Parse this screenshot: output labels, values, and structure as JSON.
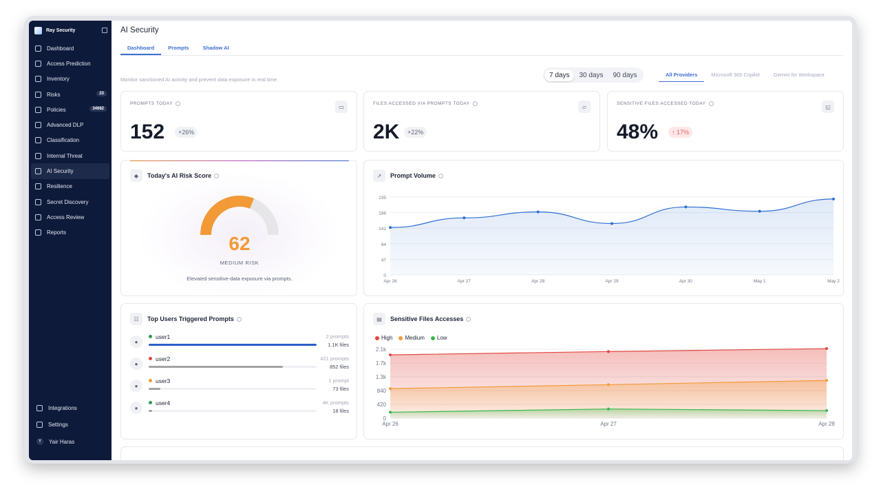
{
  "sidebar": {
    "brand": "Ray Security",
    "items": [
      {
        "label": "Dashboard",
        "icon": "grid-icon"
      },
      {
        "label": "Access Prediction",
        "icon": "prediction-icon"
      },
      {
        "label": "Inventory",
        "icon": "inventory-icon"
      },
      {
        "label": "Risks",
        "icon": "diamond-icon",
        "badge": "23"
      },
      {
        "label": "Policies",
        "icon": "policy-icon",
        "badge": "34682"
      },
      {
        "label": "Advanced DLP",
        "icon": "search-icon"
      },
      {
        "label": "Classification",
        "icon": "classification-icon"
      },
      {
        "label": "Internal Threat",
        "icon": "user-alert-icon"
      },
      {
        "label": "AI Security",
        "icon": "ai-security-icon",
        "active": true
      },
      {
        "label": "Resilience",
        "icon": "resilience-icon"
      },
      {
        "label": "Secret Discovery",
        "icon": "shield-icon"
      },
      {
        "label": "Access Review",
        "icon": "lock-icon"
      },
      {
        "label": "Reports",
        "icon": "reports-icon"
      }
    ],
    "bottom": [
      {
        "label": "Integrations",
        "icon": "integrations-icon"
      },
      {
        "label": "Settings",
        "icon": "gear-icon"
      },
      {
        "label": "Yair Haras",
        "avatar": "Y"
      }
    ]
  },
  "header": {
    "title": "AI Security",
    "tabs": [
      "Dashboard",
      "Prompts",
      "Shadow AI"
    ],
    "subtitle": "Monitor sanctioned AI activity and prevent data exposure in real time.",
    "ranges": [
      "7 days",
      "30 days",
      "90 days"
    ],
    "selected_range": "7 days",
    "providers": [
      "All Providers",
      "Microsoft 365 Copilot",
      "Gemini for Workspace"
    ],
    "selected_provider": "All Providers"
  },
  "kpis": [
    {
      "label": "PROMPTS TODAY",
      "value": "152",
      "delta": "+26%",
      "delta_color": "neutral"
    },
    {
      "label": "FILES ACCESSED VIA PROMPTS TODAY",
      "value": "2K",
      "delta": "+22%",
      "delta_color": "neutral"
    },
    {
      "label": "SENSITIVE FILES ACCESSED TODAY",
      "value": "48%",
      "delta": "↑ 17%",
      "delta_color": "red"
    }
  ],
  "risk": {
    "title": "Today's AI Risk Score",
    "score": "62",
    "score_fraction": 0.62,
    "level": "MEDIUM RISK",
    "description": "Elevated sensitive-data exposure via prompts.",
    "color": "#f29a37"
  },
  "top_users": {
    "title": "Top Users Triggered Prompts",
    "users": [
      {
        "name": "user1",
        "prompts": "2 prompts",
        "files": "1.1K files",
        "dot": "#2e9b4c",
        "bar": "#2c5fc9",
        "fraction": 1.0
      },
      {
        "name": "user2",
        "prompts": "421 prompts",
        "files": "852 files",
        "dot": "#e0463e",
        "bar": "#a3a3a3",
        "fraction": 0.8
      },
      {
        "name": "user3",
        "prompts": "1 prompt",
        "files": "73 files",
        "dot": "#f29a37",
        "bar": "#a3a3a3",
        "fraction": 0.07
      },
      {
        "name": "user4",
        "prompts": "4K prompts",
        "files": "18 files",
        "dot": "#2e9b4c",
        "bar": "#a3a3a3",
        "fraction": 0.02
      }
    ]
  },
  "chart_data": [
    {
      "type": "area",
      "title": "Prompt Volume",
      "categories": [
        "Apr 26",
        "Apr 27",
        "Apr 28",
        "Apr 29",
        "Apr 30",
        "May 1",
        "May 2"
      ],
      "y_ticks": [
        "235",
        "188",
        "141",
        "94",
        "47",
        "0"
      ],
      "ylim": [
        0,
        235
      ],
      "series": [
        {
          "values": [
            143,
            172,
            190,
            155,
            205,
            192,
            229
          ],
          "color": "#2c6fd1"
        }
      ]
    },
    {
      "type": "area",
      "title": "Sensitive Files Accesses",
      "categories": [
        "Apr 26",
        "Apr 27",
        "Apr 28"
      ],
      "y_ticks": [
        "2.1k",
        "1.7k",
        "1.3k",
        "840",
        "420",
        "0"
      ],
      "ylim": [
        0,
        2100
      ],
      "legend": "top-left",
      "series": [
        {
          "name": "High",
          "values": [
            1930,
            2030,
            2120
          ],
          "color": "#e0463e"
        },
        {
          "name": "Medium",
          "values": [
            900,
            1020,
            1150
          ],
          "color": "#f29a37"
        },
        {
          "name": "Low",
          "values": [
            180,
            280,
            230
          ],
          "color": "#39b84a"
        }
      ]
    }
  ]
}
